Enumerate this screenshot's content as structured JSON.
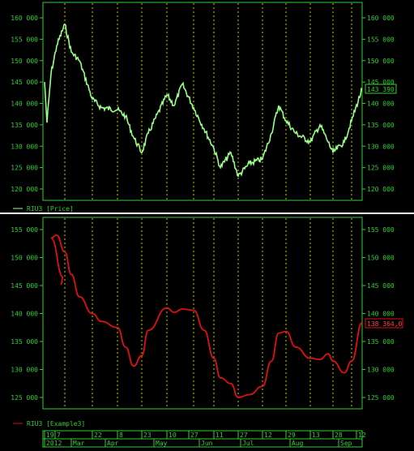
{
  "colors": {
    "background": "#000000",
    "axis": "#33cc33",
    "text": "#33cc33",
    "grid": "#c8c800",
    "separator": "#ffffff",
    "price_line": "#99ff88",
    "example_line": "#dd1111",
    "example_tag": "#ff4444"
  },
  "top_panel": {
    "legend": "RIU3 [Price]",
    "last_value_label": "143 390",
    "y_ticks_left": [
      "160 000",
      "155 000",
      "150 000",
      "145 000",
      "140 000",
      "135 000",
      "130 000",
      "125 000",
      "120 000"
    ],
    "y_ticks_right": [
      "160 000",
      "155 000",
      "150 000",
      "145 000",
      "140 000",
      "135 000",
      "130 000",
      "125 000",
      "120 000"
    ]
  },
  "bottom_panel": {
    "legend": "RIU3 [Example3]",
    "last_value_label": "138 364,0",
    "y_ticks_left": [
      "155 000",
      "150 000",
      "145 000",
      "140 000",
      "135 000",
      "130 000",
      "125 000"
    ],
    "y_ticks_right": [
      "155 000",
      "150 000",
      "145 000",
      "140 000",
      "135 000",
      "130 000",
      "125 000"
    ]
  },
  "time_axis": {
    "days": [
      "19",
      "7",
      "22",
      "8",
      "23",
      "10",
      "27",
      "11",
      "27",
      "12",
      "29",
      "13",
      "28",
      "12"
    ],
    "months": [
      "2012",
      "Mar",
      "Apr",
      "May",
      "Jun",
      "Jul",
      "Aug",
      "Sep"
    ]
  },
  "chart_data": [
    {
      "type": "line",
      "series": [
        {
          "name": "RIU3 [Price]",
          "values": [
            {
              "x": "start",
              "y": 145000
            },
            {
              "x": "early Feb",
              "y": 135500
            },
            {
              "x": "mid Feb",
              "y": 147000
            },
            {
              "x": "late Feb",
              "y": 153500
            },
            {
              "x": "end Feb",
              "y": 158500
            },
            {
              "x": "7 Mar",
              "y": 152000
            },
            {
              "x": "mid Mar",
              "y": 150000
            },
            {
              "x": "22 Mar",
              "y": 141000
            },
            {
              "x": "late Mar",
              "y": 139000
            },
            {
              "x": "8 Apr",
              "y": 138500
            },
            {
              "x": "mid Apr",
              "y": 137000
            },
            {
              "x": "late Apr",
              "y": 132000
            },
            {
              "x": "23 Apr",
              "y": 128500
            },
            {
              "x": "end Apr",
              "y": 133000
            },
            {
              "x": "10 May",
              "y": 142000
            },
            {
              "x": "mid May",
              "y": 139500
            },
            {
              "x": "late May",
              "y": 144500
            },
            {
              "x": "27 May",
              "y": 139000
            },
            {
              "x": "early Jun",
              "y": 134000
            },
            {
              "x": "11 Jun",
              "y": 129500
            },
            {
              "x": "mid Jun",
              "y": 125000
            },
            {
              "x": "late Jun",
              "y": 128500
            },
            {
              "x": "27 Jun",
              "y": 123000
            },
            {
              "x": "early Jul",
              "y": 126000
            },
            {
              "x": "12 Jul",
              "y": 127000
            },
            {
              "x": "mid Jul",
              "y": 133000
            },
            {
              "x": "late Jul",
              "y": 139500
            },
            {
              "x": "29 Jul",
              "y": 136000
            },
            {
              "x": "early Aug",
              "y": 133000
            },
            {
              "x": "13 Aug",
              "y": 131000
            },
            {
              "x": "mid Aug",
              "y": 135000
            },
            {
              "x": "late Aug",
              "y": 131000
            },
            {
              "x": "28 Aug",
              "y": 128500
            },
            {
              "x": "early Sep",
              "y": 131000
            },
            {
              "x": "12 Sep",
              "y": 136000
            },
            {
              "x": "end",
              "y": 143390
            }
          ]
        }
      ],
      "ylim": [
        118000,
        162500
      ]
    },
    {
      "type": "line",
      "series": [
        {
          "name": "RIU3 [Example3]",
          "values": [
            {
              "x": "start",
              "y": 145200
            },
            {
              "x": "late Feb",
              "y": 146500
            },
            {
              "x": "end Feb",
              "y": 153500
            },
            {
              "x": "7 Mar",
              "y": 154000
            },
            {
              "x": "mid Mar",
              "y": 151000
            },
            {
              "x": "late Mar",
              "y": 147000
            },
            {
              "x": "22 Mar",
              "y": 143000
            },
            {
              "x": "early Apr",
              "y": 140000
            },
            {
              "x": "8 Apr",
              "y": 138600
            },
            {
              "x": "mid Apr",
              "y": 137500
            },
            {
              "x": "late Apr",
              "y": 134000
            },
            {
              "x": "23 Apr",
              "y": 130600
            },
            {
              "x": "end Apr",
              "y": 132500
            },
            {
              "x": "early May",
              "y": 137000
            },
            {
              "x": "10 May",
              "y": 141000
            },
            {
              "x": "mid May",
              "y": 140200
            },
            {
              "x": "late May",
              "y": 140800
            },
            {
              "x": "27 May",
              "y": 140600
            },
            {
              "x": "early Jun",
              "y": 137000
            },
            {
              "x": "11 Jun",
              "y": 132000
            },
            {
              "x": "mid Jun",
              "y": 128500
            },
            {
              "x": "late Jun",
              "y": 127500
            },
            {
              "x": "27 Jun",
              "y": 125000
            },
            {
              "x": "early Jul",
              "y": 125500
            },
            {
              "x": "12 Jul",
              "y": 127000
            },
            {
              "x": "mid Jul",
              "y": 131500
            },
            {
              "x": "late Jul",
              "y": 136500
            },
            {
              "x": "29 Jul",
              "y": 136800
            },
            {
              "x": "early Aug",
              "y": 134000
            },
            {
              "x": "13 Aug",
              "y": 132000
            },
            {
              "x": "mid Aug",
              "y": 131800
            },
            {
              "x": "late Aug",
              "y": 132800
            },
            {
              "x": "28 Aug",
              "y": 131500
            },
            {
              "x": "early Sep",
              "y": 129400
            },
            {
              "x": "12 Sep",
              "y": 131500
            },
            {
              "x": "end",
              "y": 138364
            }
          ]
        }
      ],
      "ylim": [
        121000,
        157000
      ]
    }
  ]
}
